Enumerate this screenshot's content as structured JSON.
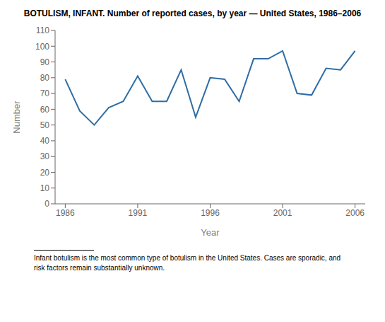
{
  "chart_data": {
    "type": "line",
    "title": "BOTULISM, INFANT. Number of reported cases, by year — United States, 1986–2006",
    "x": [
      1986,
      1987,
      1988,
      1989,
      1990,
      1991,
      1992,
      1993,
      1994,
      1995,
      1996,
      1997,
      1998,
      1999,
      2000,
      2001,
      2002,
      2003,
      2004,
      2005,
      2006
    ],
    "values": [
      79,
      59,
      50,
      61,
      65,
      81,
      65,
      65,
      85,
      55,
      80,
      79,
      65,
      92,
      92,
      97,
      70,
      69,
      86,
      85,
      97
    ],
    "xlabel": "Year",
    "ylabel": "Number",
    "xlim": [
      1985.3,
      2006.7
    ],
    "xticks": [
      1986,
      1991,
      1996,
      2001,
      2006
    ],
    "ylim": [
      0,
      110
    ],
    "yticks": [
      0,
      10,
      20,
      30,
      40,
      50,
      60,
      70,
      80,
      90,
      100,
      110
    ],
    "color": "#2e6da4",
    "grid": false,
    "annotations": [
      "Infant botulism is the most common type of botulism in the United States. Cases are sporadic, and",
      "risk factors remain substantially unknown."
    ]
  }
}
